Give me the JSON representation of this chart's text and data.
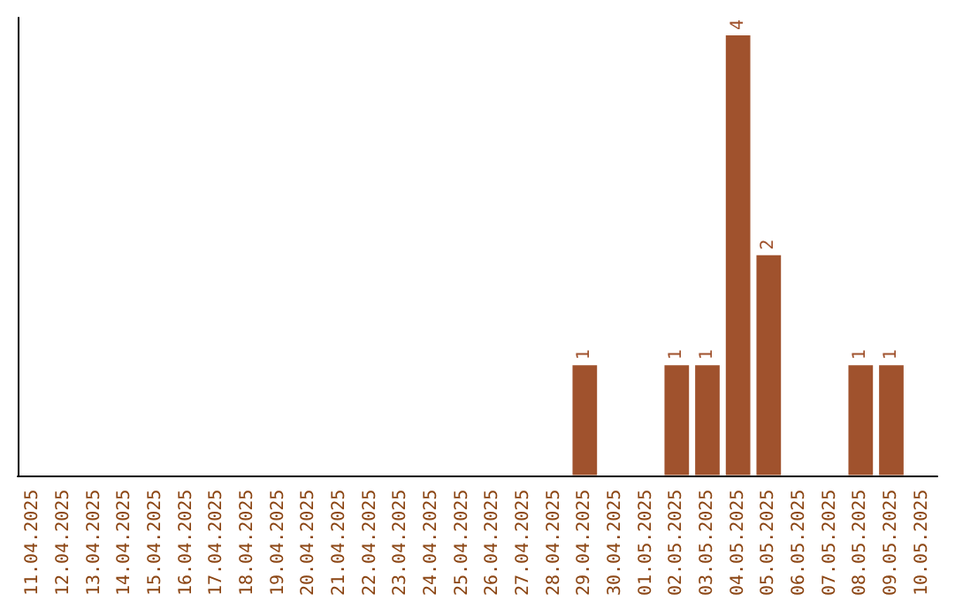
{
  "chart_data": {
    "type": "bar",
    "categories": [
      "11.04.2025",
      "12.04.2025",
      "13.04.2025",
      "14.04.2025",
      "15.04.2025",
      "16.04.2025",
      "17.04.2025",
      "18.04.2025",
      "19.04.2025",
      "20.04.2025",
      "21.04.2025",
      "22.04.2025",
      "23.04.2025",
      "24.04.2025",
      "25.04.2025",
      "26.04.2025",
      "27.04.2025",
      "28.04.2025",
      "29.04.2025",
      "30.04.2025",
      "01.05.2025",
      "02.05.2025",
      "03.05.2025",
      "04.05.2025",
      "05.05.2025",
      "06.05.2025",
      "07.05.2025",
      "08.05.2025",
      "09.05.2025",
      "10.05.2025"
    ],
    "values": [
      null,
      null,
      null,
      null,
      null,
      null,
      null,
      null,
      null,
      null,
      null,
      null,
      null,
      null,
      null,
      null,
      null,
      null,
      1,
      null,
      null,
      1,
      1,
      4,
      2,
      null,
      null,
      1,
      1,
      null
    ],
    "color": "#a0522d",
    "data_labels": true,
    "grid": false,
    "tick_labels": "x"
  }
}
